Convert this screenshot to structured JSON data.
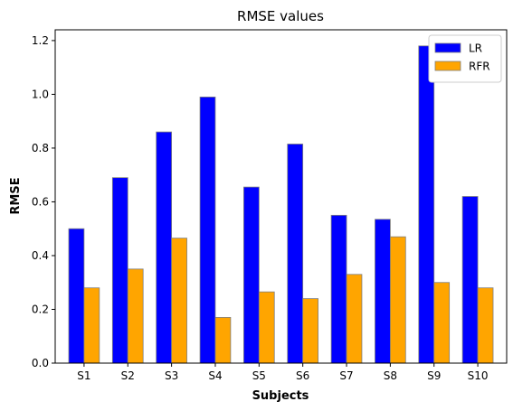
{
  "chart_data": {
    "type": "bar",
    "title": "RMSE values",
    "xlabel": "Subjects",
    "ylabel": "RMSE",
    "categories": [
      "S1",
      "S2",
      "S3",
      "S4",
      "S5",
      "S6",
      "S7",
      "S8",
      "S9",
      "S10"
    ],
    "series": [
      {
        "name": "LR",
        "color": "#0000ff",
        "values": [
          0.5,
          0.69,
          0.86,
          0.99,
          0.655,
          0.815,
          0.55,
          0.535,
          1.18,
          0.62
        ]
      },
      {
        "name": "RFR",
        "color": "#ffa500",
        "values": [
          0.28,
          0.35,
          0.465,
          0.17,
          0.265,
          0.24,
          0.33,
          0.47,
          0.3,
          0.28
        ]
      }
    ],
    "ylim": [
      0,
      1.24
    ],
    "yticks": [
      "0.0",
      "0.2",
      "0.4",
      "0.6",
      "0.8",
      "1.0",
      "1.2"
    ],
    "grid": false,
    "legend_position": "top-right"
  }
}
